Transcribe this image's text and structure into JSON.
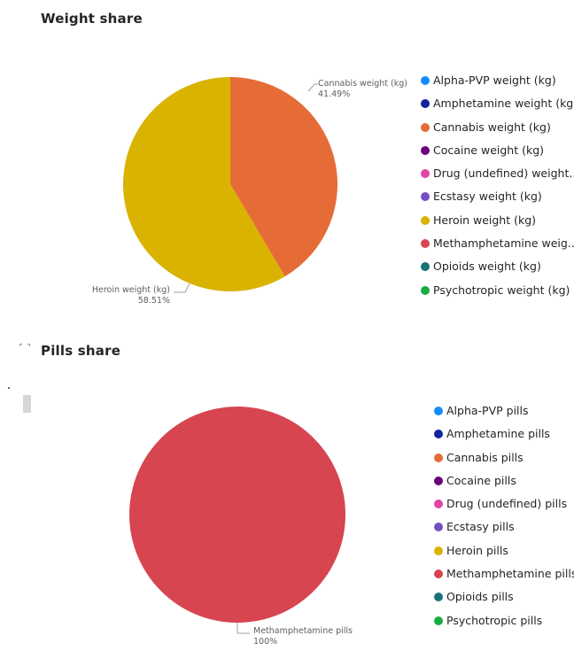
{
  "chart_data": [
    {
      "type": "pie",
      "title": "Weight share",
      "slices": [
        {
          "label": "Cannabis weight (kg)",
          "value": 41.49,
          "percent_label": "41.49%",
          "color": "#E66C37"
        },
        {
          "label": "Heroin weight (kg)",
          "value": 58.51,
          "percent_label": "58.51%",
          "color": "#D9B300"
        }
      ],
      "legend": {
        "position": "right",
        "items": [
          {
            "label": "Alpha-PVP weight (kg)",
            "color": "#118DFF"
          },
          {
            "label": "Amphetamine weight (kg)",
            "color": "#12239E"
          },
          {
            "label": "Cannabis weight (kg)",
            "color": "#E66C37"
          },
          {
            "label": "Cocaine weight (kg)",
            "color": "#6B007B"
          },
          {
            "label": "Drug (undefined) weight...",
            "color": "#E044A7"
          },
          {
            "label": "Ecstasy weight (kg)",
            "color": "#744EC2"
          },
          {
            "label": "Heroin weight (kg)",
            "color": "#D9B300"
          },
          {
            "label": "Methamphetamine weig...",
            "color": "#D64550"
          },
          {
            "label": "Opioids weight (kg)",
            "color": "#197278"
          },
          {
            "label": "Psychotropic weight (kg)",
            "color": "#1AAB40"
          }
        ]
      }
    },
    {
      "type": "pie",
      "title": "Pills share",
      "slices": [
        {
          "label": "Methamphetamine pills",
          "value": 100,
          "percent_label": "100%",
          "color": "#D64550"
        }
      ],
      "legend": {
        "position": "right",
        "items": [
          {
            "label": "Alpha-PVP pills",
            "color": "#118DFF"
          },
          {
            "label": "Amphetamine pills",
            "color": "#12239E"
          },
          {
            "label": "Cannabis pills",
            "color": "#E66C37"
          },
          {
            "label": "Cocaine pills",
            "color": "#6B007B"
          },
          {
            "label": "Drug (undefined) pills",
            "color": "#E044A7"
          },
          {
            "label": "Ecstasy pills",
            "color": "#744EC2"
          },
          {
            "label": "Heroin pills",
            "color": "#D9B300"
          },
          {
            "label": "Methamphetamine pills",
            "color": "#D64550"
          },
          {
            "label": "Opioids pills",
            "color": "#197278"
          },
          {
            "label": "Psychotropic pills",
            "color": "#1AAB40"
          }
        ]
      }
    }
  ],
  "icons": {
    "focus_mode": "focus-mode-icon",
    "scrollbar": "scroll-thumb"
  }
}
